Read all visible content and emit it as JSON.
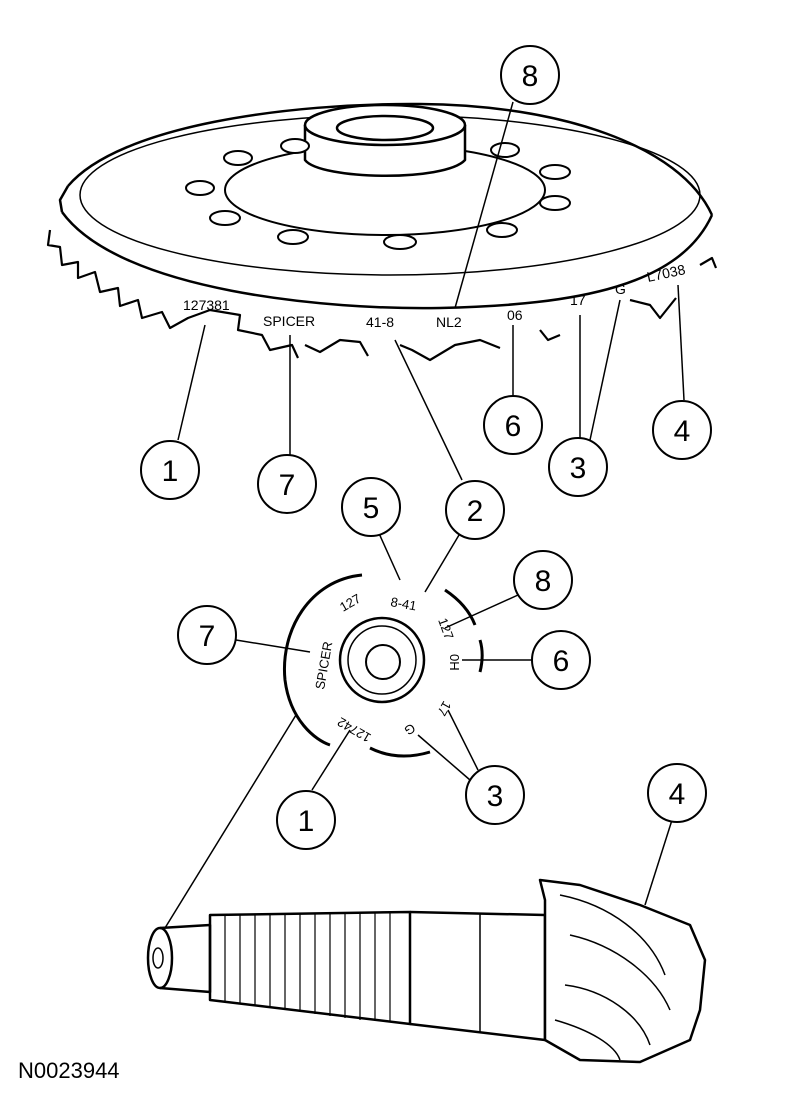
{
  "figure_id": "N0023944",
  "ring_gear": {
    "markings": {
      "part_number": "127381",
      "manufacturer": "SPICER",
      "ratio": "41-8",
      "assembly_code": "NL2",
      "date_month": "06",
      "date_day": "17",
      "plant_code": "G",
      "shift_code": "L7038"
    }
  },
  "pinion_end": {
    "markings": {
      "part_number": "127",
      "ratio": "8-41",
      "ring_ref": "127",
      "date": "0H",
      "day": "17",
      "plant_code": "G",
      "serial": "12742",
      "manufacturer": "SPICER"
    }
  },
  "callouts": {
    "c1_top": "1",
    "c7_top": "7",
    "c2_top": "2",
    "c6_top": "6",
    "c3_top": "3",
    "c4_top": "4",
    "c8_top": "8",
    "c5_mid": "5",
    "c2_mid": "2",
    "c8_mid": "8",
    "c6_mid": "6",
    "c7_mid": "7",
    "c3_mid": "3",
    "c1_mid": "1",
    "c4_bot": "4"
  }
}
